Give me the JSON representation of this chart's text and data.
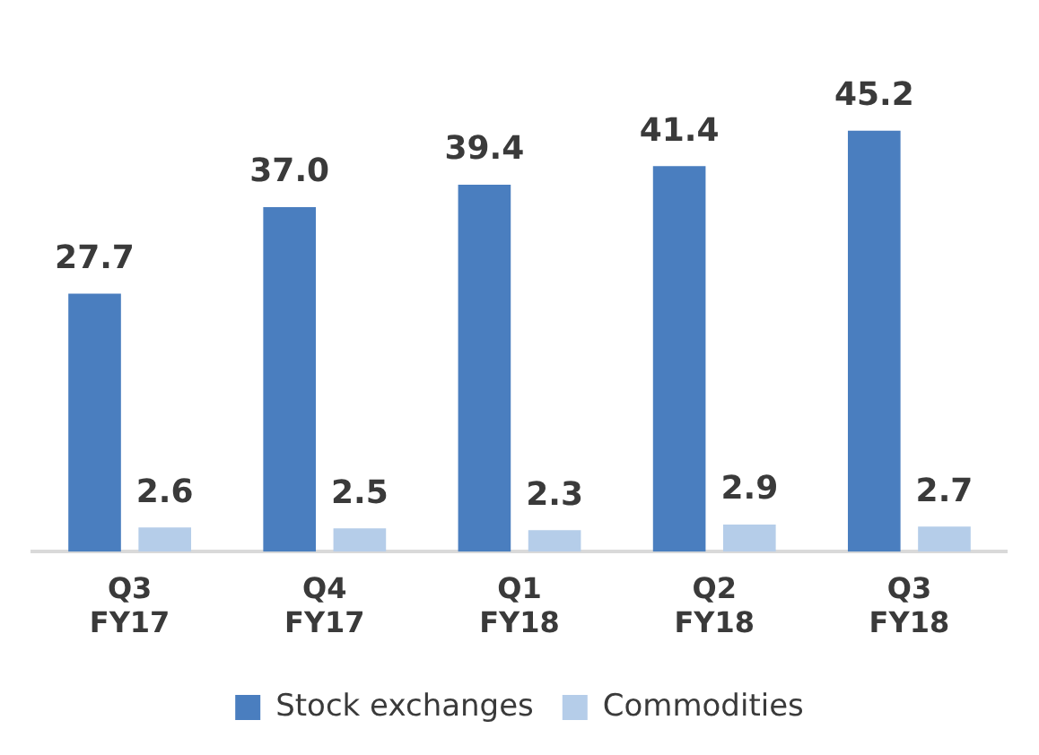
{
  "chart_data": {
    "type": "bar",
    "categories": [
      "Q3 FY17",
      "Q4 FY17",
      "Q1 FY18",
      "Q2 FY18",
      "Q3 FY18"
    ],
    "series": [
      {
        "name": "Stock exchanges",
        "color": "#4a7ebf",
        "values": [
          27.7,
          37.0,
          39.4,
          41.4,
          45.2
        ],
        "value_labels": [
          "27.7",
          "37.0",
          "39.4",
          "41.4",
          "45.2"
        ]
      },
      {
        "name": "Commodities",
        "color": "#b5cde9",
        "values": [
          2.6,
          2.5,
          2.3,
          2.9,
          2.7
        ],
        "value_labels": [
          "2.6",
          "2.5",
          "2.3",
          "2.9",
          "2.7"
        ]
      }
    ],
    "legend": "bottom",
    "grid": false
  }
}
